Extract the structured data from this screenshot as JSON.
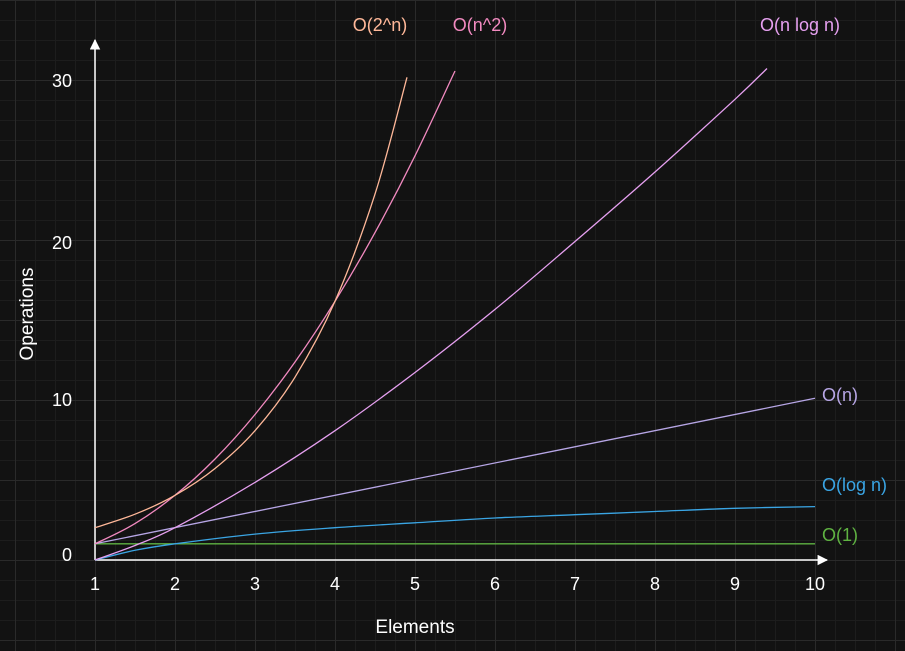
{
  "chart_data": {
    "type": "line",
    "title": "",
    "xlabel": "Elements",
    "ylabel": "Operations",
    "xlim": [
      1,
      10
    ],
    "ylim": [
      0,
      30
    ],
    "x_ticks": [
      "1",
      "2",
      "3",
      "4",
      "5",
      "6",
      "7",
      "8",
      "9",
      "10"
    ],
    "y_ticks": [
      "0",
      "10",
      "20",
      "30"
    ],
    "grid": true,
    "legend": "inline labels at line ends",
    "series": [
      {
        "name": "O(1)",
        "color": "#5fb342",
        "x": [
          1,
          10
        ],
        "y": [
          1,
          1
        ]
      },
      {
        "name": "O(log n)",
        "color": "#3aa5e4",
        "x": [
          1,
          1.5,
          2,
          3,
          4,
          5,
          6,
          7,
          8,
          9,
          10
        ],
        "y": [
          0,
          0.6,
          1,
          1.6,
          2,
          2.3,
          2.6,
          2.8,
          3,
          3.2,
          3.3
        ]
      },
      {
        "name": "O(n)",
        "color": "#b7a6e6",
        "x": [
          1,
          10
        ],
        "y": [
          1,
          10
        ]
      },
      {
        "name": "O(n log n)",
        "color": "#e6a0f0",
        "x": [
          1,
          1.5,
          2,
          3,
          4,
          5,
          6,
          7,
          8,
          9,
          9.4
        ],
        "y": [
          0,
          0.9,
          2,
          4.8,
          8,
          11.6,
          15.5,
          19.7,
          24,
          28.5,
          30.4
        ]
      },
      {
        "name": "O(n^2)",
        "color": "#f28ac0",
        "x": [
          1,
          1.5,
          2,
          2.5,
          3,
          3.5,
          4,
          4.5,
          5,
          5.5
        ],
        "y": [
          1,
          2.25,
          4,
          6.25,
          9,
          12.25,
          16,
          20.25,
          25,
          30.25
        ]
      },
      {
        "name": "O(2^n)",
        "color": "#ffb899",
        "x": [
          1,
          1.5,
          2,
          2.5,
          3,
          3.5,
          4,
          4.5,
          4.9
        ],
        "y": [
          2,
          2.83,
          4,
          5.66,
          8,
          11.31,
          16,
          22.63,
          29.86
        ]
      }
    ]
  }
}
